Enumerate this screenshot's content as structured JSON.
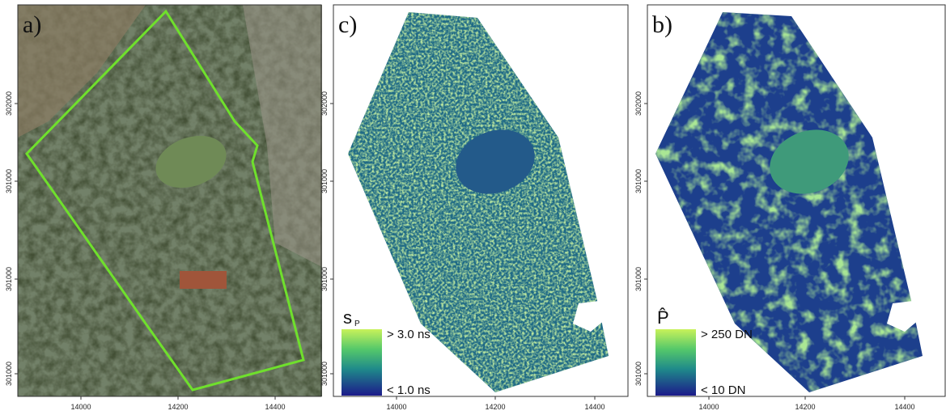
{
  "panels": [
    {
      "label": "a)",
      "xticks": [
        "14000",
        "14200",
        "14400"
      ],
      "yticks": [
        "302000",
        "301000",
        "301000",
        "301000"
      ]
    },
    {
      "label": "c)",
      "xticks": [
        "14000",
        "14200",
        "14400"
      ],
      "yticks": [
        "302000",
        "301000",
        "301000",
        "301000"
      ],
      "legend": {
        "symbol": "s",
        "subscript": "P",
        "high": "> 3.0 ns",
        "low": "< 1.0 ns"
      }
    },
    {
      "label": "b)",
      "xticks": [
        "14000",
        "14200",
        "14400"
      ],
      "yticks": [
        "302000",
        "301000",
        "301000",
        "301000"
      ],
      "legend": {
        "symbol": "P̂",
        "high": "> 250 DN",
        "low": "< 10 DN"
      }
    }
  ]
}
